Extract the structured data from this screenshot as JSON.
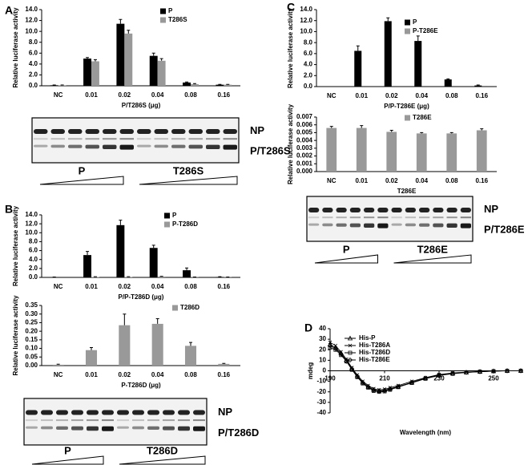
{
  "panel_labels": [
    "A",
    "B",
    "C",
    "D"
  ],
  "blots": [
    {
      "bands": [
        "NP",
        "P/T286S"
      ],
      "groups": [
        "P",
        "T286S"
      ]
    },
    {
      "bands": [
        "NP",
        "P/T286D"
      ],
      "groups": [
        "P",
        "T286D"
      ]
    },
    {
      "bands": [
        "NP",
        "P/T286E"
      ],
      "groups": [
        "P",
        "T286E"
      ]
    }
  ],
  "chart_data": [
    {
      "type": "bar",
      "ylabel": "Relative luciferase activity",
      "xlabel": "P/T286S (μg)",
      "categories": [
        "NC",
        "0.01",
        "0.02",
        "0.04",
        "0.08",
        "0.16"
      ],
      "series": [
        {
          "name": "P",
          "color": "#000000",
          "values": [
            0.1,
            5.0,
            11.4,
            5.5,
            0.6,
            0.2
          ],
          "errors": [
            0.05,
            0.2,
            0.8,
            0.5,
            0.1,
            0.05
          ]
        },
        {
          "name": "T286S",
          "color": "#999999",
          "values": [
            0.1,
            4.5,
            9.6,
            4.6,
            0.3,
            0.2
          ],
          "errors": [
            0.05,
            0.3,
            0.6,
            0.4,
            0.1,
            0.05
          ]
        }
      ],
      "ylim": [
        0,
        14
      ],
      "yticks": [
        {
          "value": 0,
          "label": "0.0"
        },
        {
          "value": 2,
          "label": "2.0"
        },
        {
          "value": 4,
          "label": "4.0"
        },
        {
          "value": 6,
          "label": "6.0"
        },
        {
          "value": 8,
          "label": "8.0"
        },
        {
          "value": 10,
          "label": "10.0"
        },
        {
          "value": 12,
          "label": "12.0"
        },
        {
          "value": 14,
          "label": "14.0"
        }
      ]
    },
    {
      "type": "bar",
      "ylabel": "Relative luciferase activity",
      "xlabel": "P/P-T286D (μg)",
      "categories": [
        "NC",
        "0.01",
        "0.02",
        "0.04",
        "0.08",
        "0.16"
      ],
      "series": [
        {
          "name": "P",
          "color": "#000000",
          "values": [
            0.05,
            5.0,
            11.7,
            6.6,
            1.6,
            0.1
          ],
          "errors": [
            0.05,
            0.8,
            1.1,
            0.6,
            0.5,
            0.05
          ]
        },
        {
          "name": "P-T286D",
          "color": "#999999",
          "values": [
            0,
            0.1,
            0.1,
            0.2,
            0.05,
            0.05
          ],
          "errors": [
            0,
            0.05,
            0.05,
            0.05,
            0.05,
            0.05
          ]
        }
      ],
      "ylim": [
        0,
        14
      ],
      "yticks": [
        {
          "value": 0,
          "label": "0.0"
        },
        {
          "value": 2,
          "label": "2.0"
        },
        {
          "value": 4,
          "label": "4.0"
        },
        {
          "value": 6,
          "label": "6.0"
        },
        {
          "value": 8,
          "label": "8.0"
        },
        {
          "value": 10,
          "label": "10.0"
        },
        {
          "value": 12,
          "label": "12.0"
        },
        {
          "value": 14,
          "label": "14.0"
        }
      ]
    },
    {
      "type": "bar",
      "ylabel": "Relative luciferase activity",
      "xlabel": "P-T286D (μg)",
      "categories": [
        "NC",
        "0.01",
        "0.02",
        "0.04",
        "0.08",
        "0.16"
      ],
      "series": [
        {
          "name": "T286D",
          "color": "#999999",
          "values": [
            0.005,
            0.09,
            0.235,
            0.243,
            0.115,
            0.01
          ],
          "errors": [
            0.003,
            0.015,
            0.065,
            0.03,
            0.02,
            0.003
          ]
        }
      ],
      "ylim": [
        0,
        0.35
      ],
      "yticks": [
        {
          "value": 0,
          "label": "0.00"
        },
        0.05,
        {
          "value": 0.1,
          "label": "0.10"
        },
        0.15,
        {
          "value": 0.2,
          "label": "0.20"
        },
        0.25,
        {
          "value": 0.3,
          "label": "0.30"
        },
        0.35
      ]
    },
    {
      "type": "bar",
      "ylabel": "Relative luciferase activity",
      "xlabel": "P/P-T286E (μg)",
      "categories": [
        "NC",
        "0.01",
        "0.02",
        "0.04",
        "0.08",
        "0.16"
      ],
      "series": [
        {
          "name": "P",
          "color": "#000000",
          "values": [
            0,
            6.5,
            11.9,
            8.3,
            1.3,
            0.2
          ],
          "errors": [
            0,
            0.9,
            0.6,
            0.9,
            0.1,
            0.1
          ]
        },
        {
          "name": "P-T286E",
          "color": "#999999",
          "values": [
            0,
            0,
            0,
            0,
            0,
            0
          ],
          "errors": [
            0,
            0,
            0,
            0,
            0,
            0
          ]
        }
      ],
      "ylim": [
        0,
        14
      ],
      "yticks": [
        {
          "value": 0,
          "label": "0.0"
        },
        {
          "value": 2,
          "label": "2.0"
        },
        {
          "value": 4,
          "label": "4.0"
        },
        {
          "value": 6,
          "label": "6.0"
        },
        {
          "value": 8,
          "label": "8.0"
        },
        {
          "value": 10,
          "label": "10.0"
        },
        {
          "value": 12,
          "label": "12.0"
        },
        {
          "value": 14,
          "label": "14.0"
        }
      ]
    },
    {
      "type": "bar",
      "ylabel": "Relative luciferase activity",
      "xlabel": "T286E",
      "categories": [
        "NC",
        "0.01",
        "0.02",
        "0.04",
        "0.08",
        "0.16"
      ],
      "series": [
        {
          "name": "T286E",
          "color": "#999999",
          "values": [
            0.0056,
            0.0056,
            0.0051,
            0.0049,
            0.0049,
            0.0053
          ],
          "errors": [
            0.0002,
            0.0003,
            0.0002,
            0.0001,
            0.0001,
            0.0002
          ]
        }
      ],
      "ylim": [
        0,
        0.007
      ],
      "yticks": [
        {
          "value": 0,
          "label": "0.000"
        },
        0.001,
        0.002,
        0.003,
        0.004,
        0.005,
        0.006,
        0.007
      ]
    },
    {
      "type": "line",
      "ylabel": "mdeg",
      "xlabel": "Wavelength (nm)",
      "x": [
        190,
        192,
        194,
        196,
        198,
        200,
        202,
        204,
        206,
        208,
        210,
        212,
        215,
        220,
        225,
        230,
        235,
        240,
        245,
        250,
        255,
        260
      ],
      "series": [
        {
          "name": "His-P",
          "color": "#000000",
          "marker": "triangle",
          "values": [
            25,
            22,
            17,
            10,
            2,
            -5,
            -11,
            -15,
            -18,
            -19,
            -18.5,
            -17,
            -15,
            -11,
            -7,
            -4,
            -2.5,
            -1.5,
            -0.8,
            -0.3,
            0,
            0
          ]
        },
        {
          "name": "His-T286A",
          "color": "#000000",
          "marker": "cross",
          "values": [
            27,
            24,
            18,
            11,
            3,
            -4,
            -10,
            -14,
            -17,
            -18,
            -17.5,
            -16,
            -14,
            -10,
            -6.5,
            -3.5,
            -2,
            -1.2,
            -0.6,
            -0.2,
            0,
            0
          ]
        },
        {
          "name": "His-T286D",
          "color": "#000000",
          "marker": "square",
          "values": [
            22,
            20,
            15,
            9,
            1,
            -6,
            -12,
            -16,
            -19,
            -20,
            -19.5,
            -18,
            -15.5,
            -11.5,
            -7.5,
            -4.5,
            -2.8,
            -1.6,
            -0.9,
            -0.4,
            -0.1,
            0
          ]
        },
        {
          "name": "His-T286E",
          "color": "#000000",
          "marker": "diamond",
          "values": [
            24,
            21,
            16,
            9,
            1.5,
            -5.5,
            -11.5,
            -15.5,
            -18.5,
            -19.5,
            -19,
            -17.5,
            -15,
            -11,
            -7,
            -4,
            -2.5,
            -1.5,
            -0.8,
            -0.3,
            0,
            0
          ]
        }
      ],
      "xlim": [
        190,
        260
      ],
      "xticks": [
        190,
        210,
        230,
        250
      ],
      "ylim": [
        -40,
        40
      ],
      "yticks": [
        -40,
        -30,
        -20,
        -10,
        0,
        10,
        20,
        30,
        40
      ]
    }
  ]
}
